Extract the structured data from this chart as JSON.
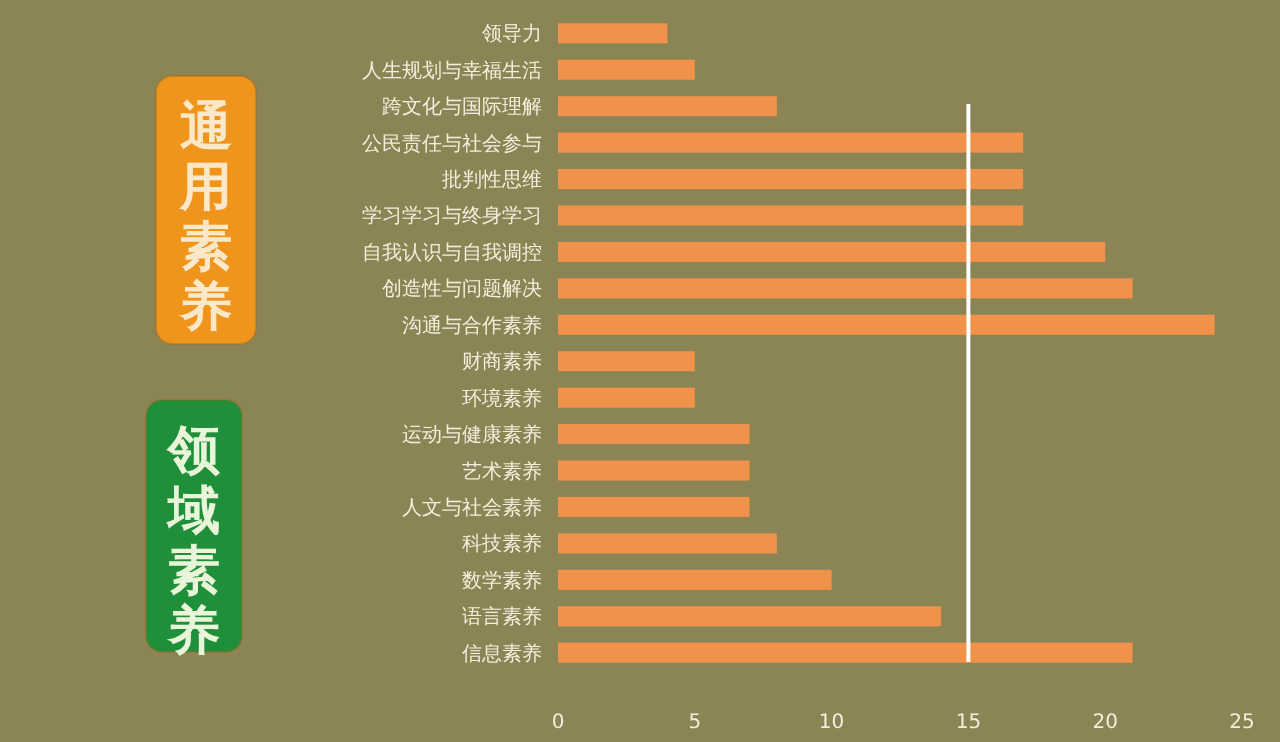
{
  "chart_data": {
    "type": "bar",
    "orientation": "horizontal",
    "categories": [
      "领导力",
      "人生规划与幸福生活",
      "跨文化与国际理解",
      "公民责任与社会参与",
      "批判性思维",
      "学习学习与终身学习",
      "自我认识与自我调控",
      "创造性与问题解决",
      "沟通与合作素养",
      "财商素养",
      "环境素养",
      "运动与健康素养",
      "艺术素养",
      "人文与社会素养",
      "科技素养",
      "数学素养",
      "语言素养",
      "信息素养"
    ],
    "values": [
      4,
      5,
      8,
      17,
      17,
      17,
      20,
      21,
      24,
      5,
      5,
      7,
      7,
      7,
      8,
      10,
      14,
      21
    ],
    "color": "#f0924a",
    "xlim": [
      0,
      25
    ],
    "xticks": [
      0,
      5,
      10,
      15,
      20,
      25
    ],
    "ref_lines": [
      {
        "axis": "x",
        "value": 15,
        "color": "#ffffff"
      }
    ],
    "annotations": [
      "通用素养",
      "领域素养"
    ]
  }
}
